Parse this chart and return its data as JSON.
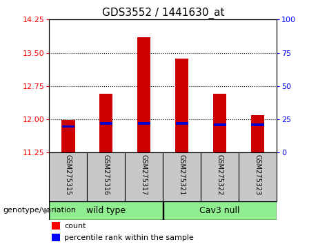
{
  "title": "GDS3552 / 1441630_at",
  "samples": [
    "GSM275315",
    "GSM275316",
    "GSM275317",
    "GSM275321",
    "GSM275322",
    "GSM275323"
  ],
  "group_names": [
    "wild type",
    "Cav3 null"
  ],
  "group_sizes": [
    3,
    3
  ],
  "bar_bottom": 11.25,
  "bar_values": [
    11.98,
    12.57,
    13.85,
    13.37,
    12.57,
    12.1
  ],
  "percentile_values": [
    11.84,
    11.91,
    11.91,
    11.91,
    11.88,
    11.88
  ],
  "ylim": [
    11.25,
    14.25
  ],
  "yticks_left": [
    11.25,
    12.0,
    12.75,
    13.5,
    14.25
  ],
  "yticks_right": [
    0,
    25,
    50,
    75,
    100
  ],
  "bar_color": "#CC0000",
  "percentile_color": "#0000CC",
  "bar_width": 0.35,
  "group_label": "genotype/variation",
  "legend_count": "count",
  "legend_percentile": "percentile rank within the sample",
  "xlabel_area_color": "#C8C8C8",
  "group_box_color": "#90EE90",
  "title_fontsize": 11,
  "tick_fontsize": 8,
  "sample_fontsize": 7,
  "group_fontsize": 9,
  "legend_fontsize": 8,
  "group_label_fontsize": 8
}
